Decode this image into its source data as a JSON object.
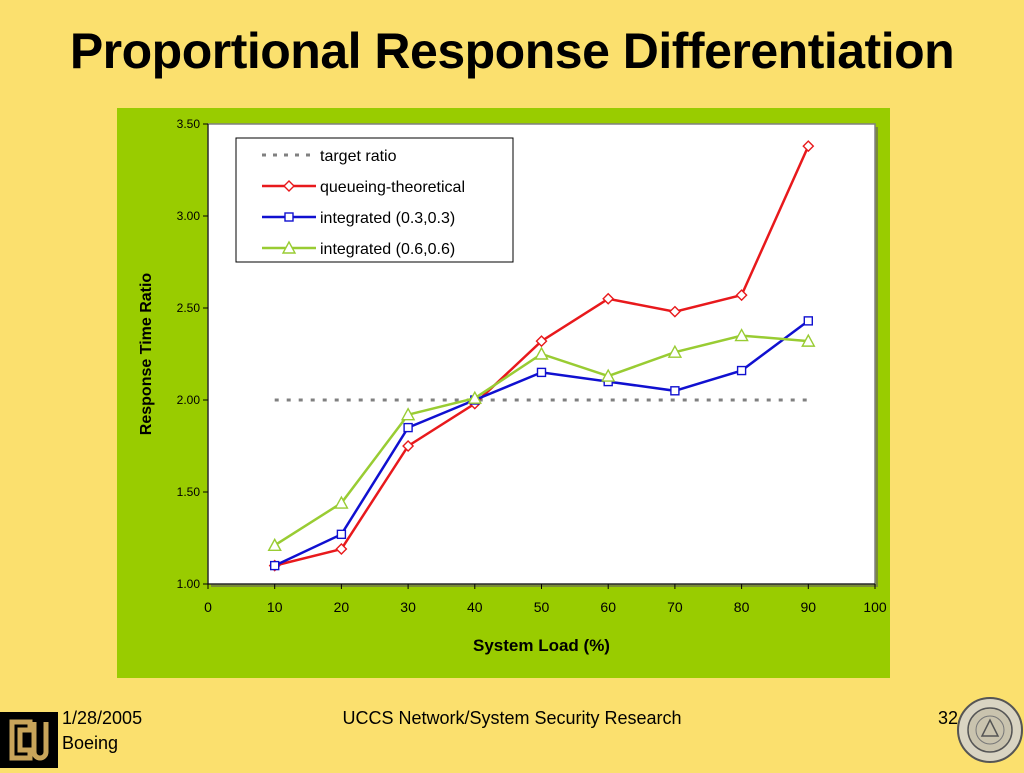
{
  "slide": {
    "title": "Proportional Response Differentiation"
  },
  "footer": {
    "date": "1/28/2005",
    "org": "Boeing",
    "center": "UCCS Network/System Security Research",
    "page": "32"
  },
  "logos": {
    "left": "cu-logo-icon",
    "right": "university-of-colorado-seal-icon",
    "seal_text": "UNIVERSITY OF COLORADO",
    "seal_year": "1876"
  },
  "colors": {
    "background": "#fbe06e",
    "panel": "#99cc00",
    "target": "#808080",
    "queueing": "#e8191c",
    "integrated33": "#1010d0",
    "integrated66": "#99cc33"
  },
  "chart_data": {
    "type": "line",
    "title": "",
    "xlabel": "System Load (%)",
    "ylabel": "Response Time Ratio",
    "xlim": [
      0,
      100
    ],
    "ylim": [
      1.0,
      3.5
    ],
    "xticks": [
      "0",
      "10",
      "20",
      "30",
      "40",
      "50",
      "60",
      "70",
      "80",
      "90",
      "100"
    ],
    "yticks": [
      "1.00",
      "1.50",
      "2.00",
      "2.50",
      "3.00",
      "3.50"
    ],
    "grid": false,
    "legend_position": "top-left",
    "series": [
      {
        "name": "target ratio",
        "style": "dashed",
        "marker": "none",
        "color": "#808080",
        "x": [
          10,
          90
        ],
        "y": [
          2.0,
          2.0
        ]
      },
      {
        "name": "queueing-theoretical",
        "style": "solid",
        "marker": "diamond",
        "color": "#e8191c",
        "x": [
          10,
          20,
          30,
          40,
          50,
          60,
          70,
          80,
          90
        ],
        "y": [
          1.1,
          1.19,
          1.75,
          1.98,
          2.32,
          2.55,
          2.48,
          2.57,
          3.38
        ]
      },
      {
        "name": "integrated (0.3,0.3)",
        "style": "solid",
        "marker": "square",
        "color": "#1010d0",
        "x": [
          10,
          20,
          30,
          40,
          50,
          60,
          70,
          80,
          90
        ],
        "y": [
          1.1,
          1.27,
          1.85,
          2.0,
          2.15,
          2.1,
          2.05,
          2.16,
          2.43
        ]
      },
      {
        "name": "integrated (0.6,0.6)",
        "style": "solid",
        "marker": "triangle",
        "color": "#99cc33",
        "x": [
          10,
          20,
          30,
          40,
          50,
          60,
          70,
          80,
          90
        ],
        "y": [
          1.21,
          1.44,
          1.92,
          2.01,
          2.25,
          2.13,
          2.26,
          2.35,
          2.32
        ]
      }
    ]
  }
}
